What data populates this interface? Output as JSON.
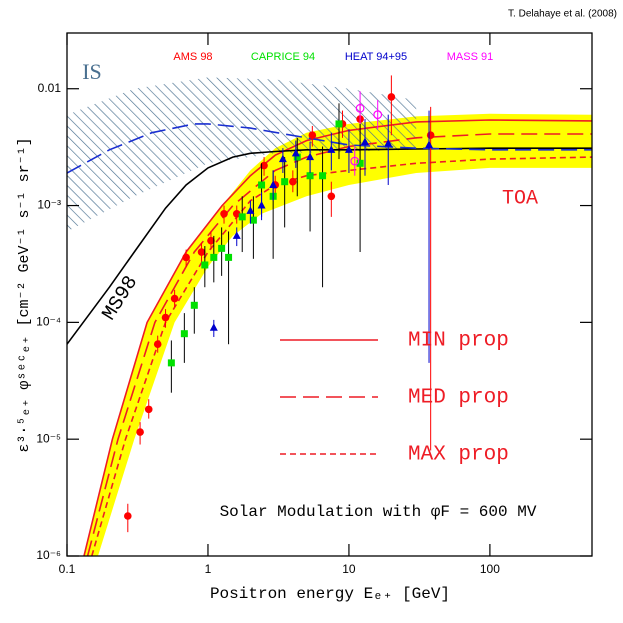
{
  "chart_data": {
    "type": "line",
    "credit": "T. Delahaye et al. (2008)",
    "x_label": "Positron energy Eₑ₊  [GeV]",
    "y_label": "ε³·⁵ₑ₊ φˢᵉᶜₑ₊  [cm⁻² GeV⁻¹ s⁻¹ sr⁻¹]",
    "annotations": {
      "toa": "TOA",
      "modulation": "Solar Modulation with φF = 600 MV"
    },
    "xlim": [
      0.1,
      530
    ],
    "ylim": [
      1e-06,
      0.03
    ],
    "xlog": true,
    "ylog": true,
    "xticks": [
      0.1,
      1,
      10,
      100
    ],
    "yticks": [
      {
        "value": 1e-06,
        "label": "10⁻⁶"
      },
      {
        "value": 1e-05,
        "label": "10⁻⁵"
      },
      {
        "value": 0.0001,
        "label": "10⁻⁴"
      },
      {
        "value": 0.001,
        "label": "10⁻³"
      },
      0.01
    ],
    "band": {
      "color": "#ffff00",
      "upper": {
        "x": [
          0.132,
          0.21,
          0.37,
          0.7,
          1.26,
          2,
          3,
          5,
          10,
          30,
          100,
          530
        ],
        "y": [
          1e-06,
          1e-05,
          0.0001,
          0.0004,
          0.001,
          0.002,
          0.0031,
          0.0042,
          0.005,
          0.0058,
          0.0061,
          0.006
        ]
      },
      "lower": {
        "x": [
          0.166,
          0.3,
          0.58,
          1,
          1.5,
          2.4,
          5,
          10,
          30,
          100,
          530
        ],
        "y": [
          1e-06,
          1e-05,
          0.0001,
          0.0003,
          0.00055,
          0.00085,
          0.0012,
          0.0015,
          0.0019,
          0.0021,
          0.0021
        ]
      }
    },
    "is_band": {
      "color": "#4a7090",
      "upper": {
        "x": [
          0.1,
          0.3,
          1,
          3,
          10,
          30
        ],
        "y": [
          0.006,
          0.01,
          0.0125,
          0.012,
          0.01,
          0.008
        ]
      },
      "lower": {
        "x": [
          0.1,
          0.3,
          1,
          3,
          10,
          30
        ],
        "y": [
          0.0006,
          0.0012,
          0.0023,
          0.0028,
          0.0029,
          0.003
        ]
      }
    },
    "series": [
      {
        "name": "MIN prop",
        "color": "#ee1c25",
        "dash": "solid",
        "legend": true,
        "x": [
          0.132,
          0.21,
          0.37,
          0.7,
          1.26,
          2,
          3,
          5,
          10,
          30,
          100,
          530
        ],
        "y": [
          1e-06,
          1e-05,
          0.0001,
          0.0004,
          0.001,
          0.0018,
          0.0027,
          0.0036,
          0.0044,
          0.0052,
          0.0054,
          0.0053
        ]
      },
      {
        "name": "MED prop",
        "color": "#ee1c25",
        "dash": "long",
        "legend": true,
        "x": [
          0.14,
          0.23,
          0.42,
          0.8,
          1.5,
          3,
          5,
          10,
          30,
          100,
          530
        ],
        "y": [
          1e-06,
          1e-05,
          0.0001,
          0.0004,
          0.001,
          0.002,
          0.0026,
          0.0032,
          0.0038,
          0.0041,
          0.0041
        ]
      },
      {
        "name": "MAX prop",
        "color": "#ee1c25",
        "dash": "short",
        "legend": true,
        "x": [
          0.15,
          0.26,
          0.5,
          1,
          2,
          3,
          5,
          10,
          30,
          100,
          530
        ],
        "y": [
          1e-06,
          1e-05,
          0.0001,
          0.0004,
          0.0011,
          0.0015,
          0.0018,
          0.002,
          0.0023,
          0.0025,
          0.0026
        ]
      },
      {
        "name": "MS98",
        "color": "#000000",
        "dash": "solid",
        "legend": false,
        "x": [
          0.1,
          0.2,
          0.3,
          0.5,
          0.7,
          1,
          1.5,
          2,
          3,
          5,
          10,
          30,
          100,
          530
        ],
        "y": [
          6.5e-05,
          0.0002,
          0.0004,
          0.00095,
          0.0015,
          0.0021,
          0.0026,
          0.0028,
          0.0029,
          0.003,
          0.003,
          0.00305,
          0.0031,
          0.0031
        ]
      },
      {
        "name": "IS",
        "color": "#1a2fd0",
        "dash": "long",
        "legend": false,
        "x": [
          0.1,
          0.2,
          0.4,
          0.8,
          1,
          2,
          5,
          10,
          30,
          100,
          530
        ],
        "y": [
          0.0019,
          0.003,
          0.0042,
          0.005,
          0.005,
          0.0046,
          0.0038,
          0.0033,
          0.0031,
          0.003,
          0.003
        ]
      }
    ],
    "experiments": [
      {
        "name": "AMS 98",
        "color": "#ff0000",
        "error_color": "#ff0000",
        "marker": "circle",
        "x": [
          0.27,
          0.33,
          0.38,
          0.44,
          0.5,
          0.58,
          0.7,
          0.9,
          1.05,
          1.3,
          1.6,
          2.5,
          3.0,
          4.0,
          5.5,
          7.5,
          9,
          12,
          20,
          38
        ],
        "y": [
          2.2e-06,
          1.15e-05,
          1.8e-05,
          6.5e-05,
          0.00011,
          0.00016,
          0.00036,
          0.0004,
          0.0005,
          0.00085,
          0.00085,
          0.0022,
          0.0015,
          0.0016,
          0.004,
          0.0012,
          0.005,
          0.0055,
          0.0085,
          0.004
        ],
        "ylo": [
          1.6e-06,
          9e-06,
          1.5e-05,
          5.5e-05,
          9e-05,
          0.000135,
          0.0003,
          0.00033,
          0.00042,
          0.0007,
          0.0007,
          0.0018,
          0.0012,
          0.0013,
          0.0032,
          0.0008,
          0.0038,
          0.004,
          0.004,
          8e-06
        ],
        "yhi": [
          2.8e-06,
          1.4e-05,
          2.2e-05,
          7.7e-05,
          0.00013,
          0.00019,
          0.00042,
          0.00048,
          0.0006,
          0.001,
          0.001,
          0.0026,
          0.0018,
          0.002,
          0.0048,
          0.0016,
          0.0065,
          0.0075,
          0.013,
          0.007
        ]
      },
      {
        "name": "CAPRICE 94",
        "color": "#00e000",
        "error_color": "#000000",
        "marker": "square",
        "x": [
          0.55,
          0.68,
          0.8,
          0.95,
          1.1,
          1.25,
          1.4,
          1.75,
          2.1,
          2.4,
          2.9,
          3.5,
          4.3,
          5.3,
          6.5,
          8.5,
          12
        ],
        "y": [
          4.5e-05,
          8e-05,
          0.00014,
          0.00031,
          0.00036,
          0.00043,
          0.00036,
          0.0008,
          0.00075,
          0.0015,
          0.0012,
          0.0016,
          0.0026,
          0.0018,
          0.0018,
          0.005,
          0.0023
        ],
        "ylo": [
          2.5e-05,
          4.5e-05,
          8e-05,
          0.0002,
          0.00022,
          0.00025,
          6.5e-05,
          0.0004,
          0.00035,
          0.0008,
          0.00035,
          0.00065,
          0.0012,
          0.0006,
          0.0002,
          0.0025,
          0.0004
        ],
        "yhi": [
          7e-05,
          0.00012,
          0.0002,
          0.00045,
          0.00055,
          0.00065,
          0.0006,
          0.0012,
          0.0012,
          0.0023,
          0.002,
          0.0026,
          0.0038,
          0.003,
          0.0032,
          0.0075,
          0.005
        ]
      },
      {
        "name": "HEAT 94+95",
        "color": "#0000cc",
        "error_color": "#0000cc",
        "marker": "triangle",
        "x": [
          1.1,
          1.6,
          2.0,
          2.4,
          2.9,
          3.4,
          4.2,
          5.3,
          7.5,
          10,
          13,
          19,
          37
        ],
        "y": [
          9e-05,
          0.00055,
          0.0009,
          0.001,
          0.0015,
          0.0025,
          0.0028,
          0.0026,
          0.003,
          0.003,
          0.0035,
          0.0034,
          0.0033
        ],
        "ylo": [
          7.5e-05,
          0.00045,
          0.0007,
          0.00075,
          0.0011,
          0.0019,
          0.0021,
          0.0019,
          0.002,
          0.0019,
          0.0018,
          0.0015,
          4.5e-05
        ],
        "yhi": [
          0.000105,
          0.00065,
          0.0011,
          0.0013,
          0.002,
          0.0031,
          0.0036,
          0.0035,
          0.0042,
          0.0045,
          0.0055,
          0.006,
          0.0065
        ]
      },
      {
        "name": "MASS 91",
        "color": "#ff00ff",
        "error_color": "#ff00ff",
        "marker": "open-circle",
        "x": [
          11,
          12,
          16
        ],
        "y": [
          0.0024,
          0.0068,
          0.006
        ],
        "ylo": [
          0.0018,
          0.005,
          0.0045
        ],
        "yhi": [
          0.0032,
          0.0095,
          0.008
        ]
      }
    ]
  }
}
